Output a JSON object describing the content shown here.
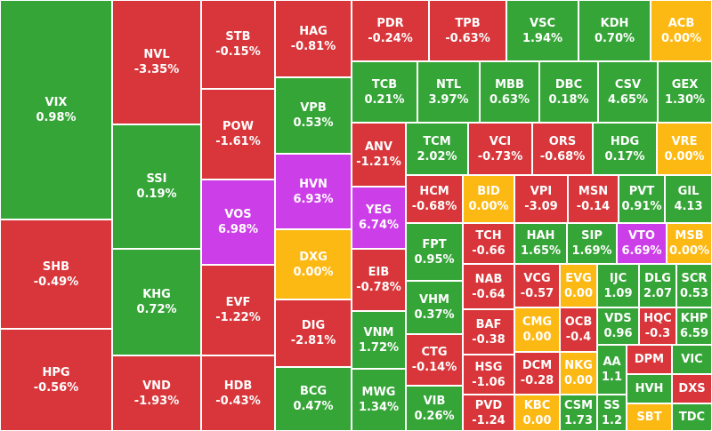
{
  "tiles": [
    {
      "ticker": "VIX",
      "change": "0.98%",
      "color": "#36a538"
    },
    {
      "ticker": "SHB",
      "change": "-0.49%",
      "color": "#d8363a"
    },
    {
      "ticker": "HPG",
      "change": "-0.56%",
      "color": "#d8363a"
    },
    {
      "ticker": "NVL",
      "change": "-3.35%",
      "color": "#d8363a"
    },
    {
      "ticker": "SSI",
      "change": "0.19%",
      "color": "#36a538"
    },
    {
      "ticker": "KHG",
      "change": "0.72%",
      "color": "#36a538"
    },
    {
      "ticker": "VND",
      "change": "-1.93%",
      "color": "#d8363a"
    },
    {
      "ticker": "STB",
      "change": "-0.15%",
      "color": "#d8363a"
    },
    {
      "ticker": "POW",
      "change": "-1.61%",
      "color": "#d8363a"
    },
    {
      "ticker": "VOS",
      "change": "6.98%",
      "color": "#cc3fe8"
    },
    {
      "ticker": "EVF",
      "change": "-1.22%",
      "color": "#d8363a"
    },
    {
      "ticker": "HDB",
      "change": "-0.43%",
      "color": "#d8363a"
    },
    {
      "ticker": "HAG",
      "change": "-0.81%",
      "color": "#d8363a"
    },
    {
      "ticker": "VPB",
      "change": "0.53%",
      "color": "#36a538"
    },
    {
      "ticker": "HVN",
      "change": "6.93%",
      "color": "#cc3fe8"
    },
    {
      "ticker": "DXG",
      "change": "0.00%",
      "color": "#fdb913"
    },
    {
      "ticker": "DIG",
      "change": "-2.81%",
      "color": "#d8363a"
    },
    {
      "ticker": "BCG",
      "change": "0.47%",
      "color": "#36a538"
    },
    {
      "ticker": "PDR",
      "change": "-0.24%",
      "color": "#d8363a"
    },
    {
      "ticker": "TPB",
      "change": "-0.63%",
      "color": "#d8363a"
    },
    {
      "ticker": "VSC",
      "change": "1.94%",
      "color": "#36a538"
    },
    {
      "ticker": "KDH",
      "change": "0.70%",
      "color": "#36a538"
    },
    {
      "ticker": "ACB",
      "change": "0.00%",
      "color": "#fdb913"
    },
    {
      "ticker": "TCB",
      "change": "0.21%",
      "color": "#36a538"
    },
    {
      "ticker": "NTL",
      "change": "3.97%",
      "color": "#36a538"
    },
    {
      "ticker": "MBB",
      "change": "0.63%",
      "color": "#36a538"
    },
    {
      "ticker": "DBC",
      "change": "0.18%",
      "color": "#36a538"
    },
    {
      "ticker": "CSV",
      "change": "4.65%",
      "color": "#36a538"
    },
    {
      "ticker": "GEX",
      "change": "1.30%",
      "color": "#36a538"
    },
    {
      "ticker": "ANV",
      "change": "-1.21%",
      "color": "#d8363a"
    },
    {
      "ticker": "YEG",
      "change": "6.74%",
      "color": "#cc3fe8"
    },
    {
      "ticker": "EIB",
      "change": "-0.78%",
      "color": "#d8363a"
    },
    {
      "ticker": "VNM",
      "change": "1.72%",
      "color": "#36a538"
    },
    {
      "ticker": "MWG",
      "change": "1.34%",
      "color": "#36a538"
    },
    {
      "ticker": "TCM",
      "change": "2.02%",
      "color": "#36a538"
    },
    {
      "ticker": "VCI",
      "change": "-0.73%",
      "color": "#d8363a"
    },
    {
      "ticker": "ORS",
      "change": "-0.68%",
      "color": "#d8363a"
    },
    {
      "ticker": "HDG",
      "change": "0.17%",
      "color": "#36a538"
    },
    {
      "ticker": "VRE",
      "change": "0.00%",
      "color": "#fdb913"
    },
    {
      "ticker": "HCM",
      "change": "-0.68%",
      "color": "#d8363a"
    },
    {
      "ticker": "BID",
      "change": "0.00%",
      "color": "#fdb913"
    },
    {
      "ticker": "VPI",
      "change": "-3.09",
      "color": "#d8363a"
    },
    {
      "ticker": "MSN",
      "change": "-0.14",
      "color": "#d8363a"
    },
    {
      "ticker": "PVT",
      "change": "0.91%",
      "color": "#36a538"
    },
    {
      "ticker": "GIL",
      "change": "4.13",
      "color": "#36a538"
    },
    {
      "ticker": "FPT",
      "change": "0.95%",
      "color": "#36a538"
    },
    {
      "ticker": "VHM",
      "change": "0.37%",
      "color": "#36a538"
    },
    {
      "ticker": "CTG",
      "change": "-0.14%",
      "color": "#d8363a"
    },
    {
      "ticker": "VIB",
      "change": "0.26%",
      "color": "#36a538"
    },
    {
      "ticker": "TCH",
      "change": "-0.66",
      "color": "#d8363a"
    },
    {
      "ticker": "NAB",
      "change": "-0.64",
      "color": "#d8363a"
    },
    {
      "ticker": "BAF",
      "change": "-0.38",
      "color": "#d8363a"
    },
    {
      "ticker": "HSG",
      "change": "-1.06",
      "color": "#d8363a"
    },
    {
      "ticker": "PVD",
      "change": "-1.24",
      "color": "#d8363a"
    },
    {
      "ticker": "HAH",
      "change": "1.65%",
      "color": "#36a538"
    },
    {
      "ticker": "SIP",
      "change": "1.69%",
      "color": "#36a538"
    },
    {
      "ticker": "VTO",
      "change": "6.69%",
      "color": "#cc3fe8"
    },
    {
      "ticker": "MSB",
      "change": "0.00%",
      "color": "#fdb913"
    },
    {
      "ticker": "VCG",
      "change": "-0.57",
      "color": "#d8363a"
    },
    {
      "ticker": "EVG",
      "change": "0.00",
      "color": "#fdb913"
    },
    {
      "ticker": "IJC",
      "change": "1.09",
      "color": "#36a538"
    },
    {
      "ticker": "DLG",
      "change": "2.07",
      "color": "#36a538"
    },
    {
      "ticker": "SCR",
      "change": "0.53",
      "color": "#36a538"
    },
    {
      "ticker": "CMG",
      "change": "0.00",
      "color": "#fdb913"
    },
    {
      "ticker": "OCB",
      "change": "-0.4",
      "color": "#d8363a"
    },
    {
      "ticker": "VDS",
      "change": "0.96",
      "color": "#36a538"
    },
    {
      "ticker": "HQC",
      "change": "-0.3",
      "color": "#d8363a"
    },
    {
      "ticker": "KHP",
      "change": "6.59",
      "color": "#36a538"
    },
    {
      "ticker": "DCM",
      "change": "-0.28",
      "color": "#d8363a"
    },
    {
      "ticker": "NKG",
      "change": "0.00",
      "color": "#fdb913"
    },
    {
      "ticker": "AA",
      "change": "1.1",
      "color": "#36a538"
    },
    {
      "ticker": "DPM",
      "color": "#d8363a"
    },
    {
      "ticker": "VIC",
      "color": "#36a538"
    },
    {
      "ticker": "HVH",
      "color": "#36a538"
    },
    {
      "ticker": "DXS",
      "color": "#d8363a"
    },
    {
      "ticker": "KBC",
      "change": "0.00",
      "color": "#fdb913"
    },
    {
      "ticker": "CSM",
      "change": "1.73",
      "color": "#36a538"
    },
    {
      "ticker": "SS",
      "change": "1.2",
      "color": "#36a538"
    },
    {
      "ticker": "SBT",
      "color": "#fdb913"
    },
    {
      "ticker": "TDC",
      "color": "#36a538"
    }
  ]
}
